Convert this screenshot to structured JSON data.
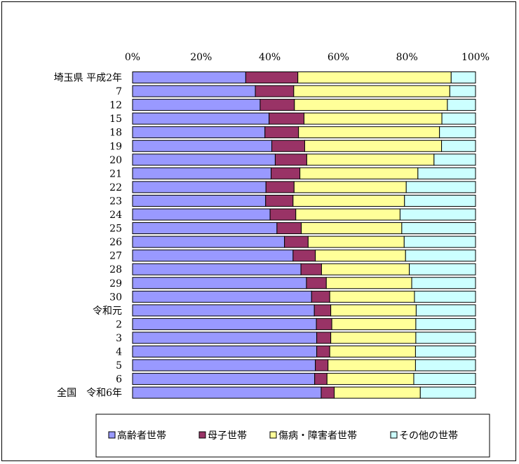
{
  "chart_data": {
    "type": "bar",
    "orientation": "horizontal",
    "stacked": "percent",
    "categories": [
      "埼玉県 平成2年",
      "7",
      "12",
      "15",
      "18",
      "19",
      "20",
      "21",
      "22",
      "23",
      "24",
      "25",
      "26",
      "27",
      "28",
      "29",
      "30",
      "令和元",
      "2",
      "3",
      "4",
      "5",
      "6",
      "全国　令和6年"
    ],
    "xlim": [
      0,
      100
    ],
    "x_ticks": [
      "0%",
      "20%",
      "40%",
      "60%",
      "80%",
      "100%"
    ],
    "x_tick_values": [
      0,
      20,
      40,
      60,
      80,
      100
    ],
    "grid": false,
    "legend_position": "bottom",
    "series": [
      {
        "name": "高齢者世帯",
        "color": "#9999ff",
        "values": [
          33.0,
          35.8,
          37.2,
          39.8,
          38.6,
          40.6,
          41.6,
          40.4,
          38.9,
          38.8,
          40.1,
          42.1,
          44.3,
          46.8,
          49.1,
          50.7,
          52.2,
          53.0,
          53.6,
          53.7,
          53.7,
          53.3,
          53.1,
          55.0
        ]
      },
      {
        "name": "母子世帯",
        "color": "#993366",
        "values": [
          15.2,
          11.2,
          10.0,
          10.2,
          9.8,
          9.6,
          9.2,
          8.4,
          8.2,
          8.0,
          7.5,
          7.1,
          6.9,
          6.5,
          6.0,
          5.8,
          5.3,
          4.8,
          4.5,
          4.1,
          3.8,
          3.7,
          3.6,
          3.8
        ]
      },
      {
        "name": "傷病・障害者世帯",
        "color": "#ffff99",
        "values": [
          44.7,
          45.5,
          44.6,
          40.2,
          41.1,
          39.9,
          37.1,
          34.4,
          32.7,
          32.5,
          30.4,
          29.3,
          28.0,
          26.3,
          25.6,
          24.9,
          24.7,
          24.9,
          24.5,
          24.8,
          25.0,
          25.5,
          25.3,
          25.1
        ]
      },
      {
        "name": "その他の世帯",
        "color": "#ccffff",
        "values": [
          7.1,
          7.5,
          8.2,
          9.8,
          10.5,
          9.9,
          12.1,
          16.8,
          20.2,
          20.7,
          22.0,
          21.5,
          20.8,
          20.4,
          19.3,
          18.6,
          17.8,
          17.3,
          17.4,
          17.4,
          17.5,
          17.5,
          18.0,
          16.1
        ]
      }
    ]
  }
}
